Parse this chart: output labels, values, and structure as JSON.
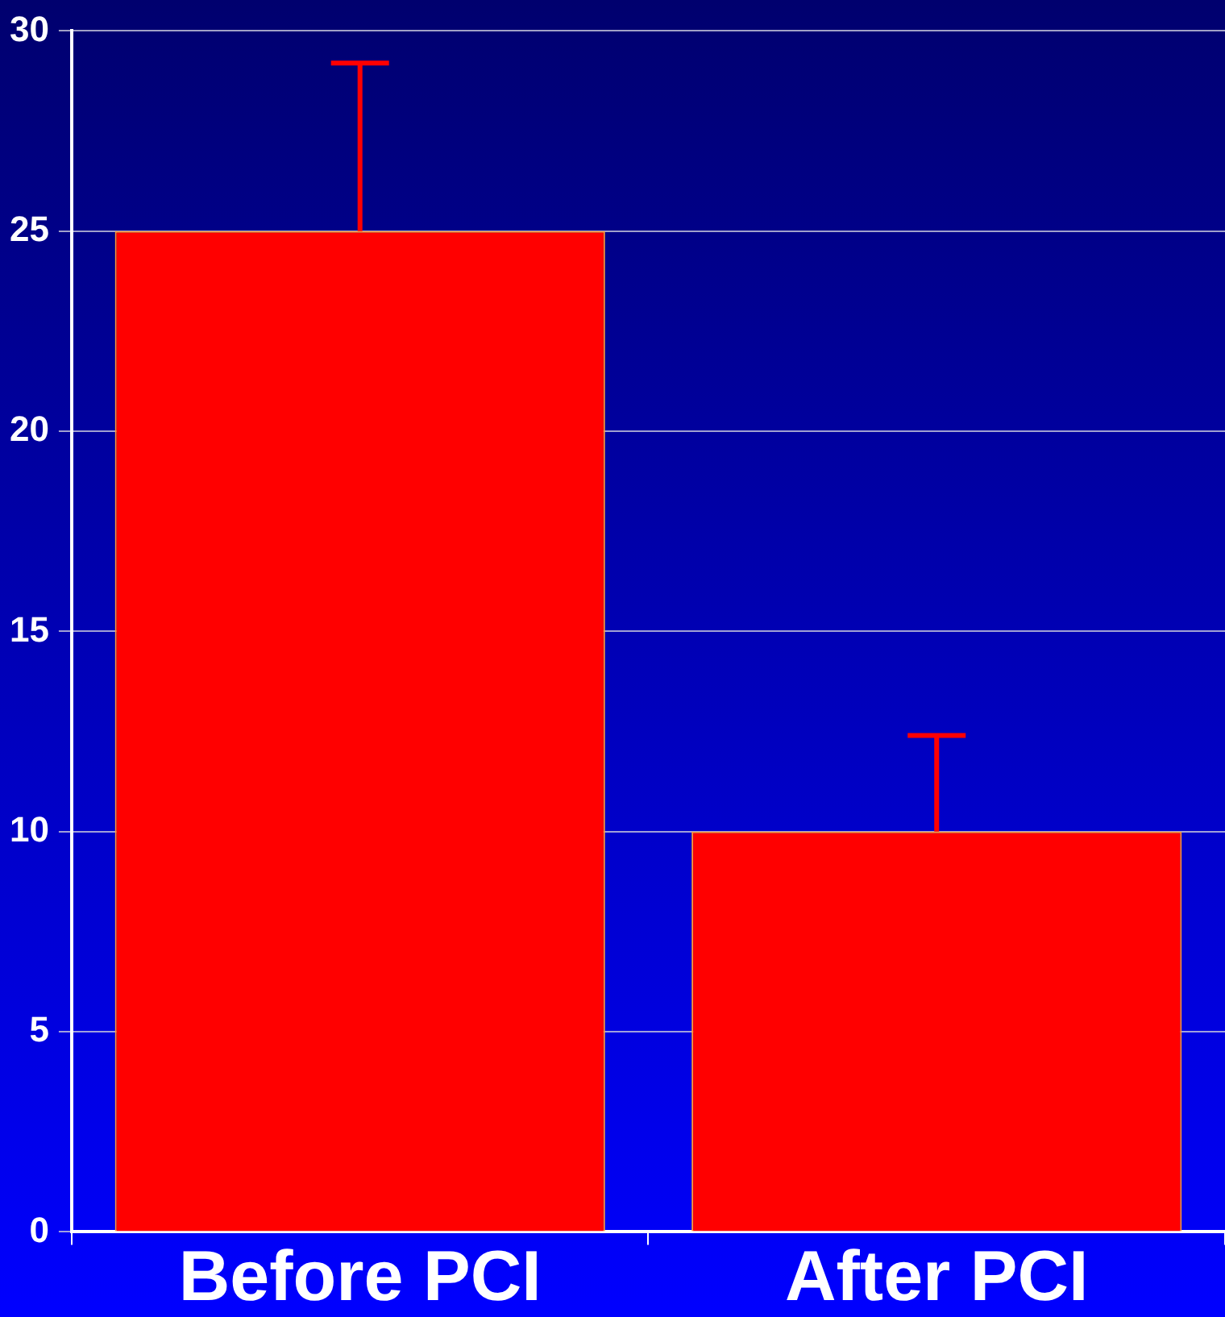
{
  "chart_data": {
    "type": "bar",
    "categories": [
      "Before PCI",
      "After PCI"
    ],
    "values": [
      25,
      10
    ],
    "color": "#ff0000",
    "errors": [
      [
        25,
        29.2
      ],
      [
        10,
        12.4
      ]
    ],
    "ylim": [
      0,
      30
    ],
    "yticks": [
      0,
      5,
      10,
      15,
      20,
      25,
      30
    ],
    "grid": "y"
  }
}
